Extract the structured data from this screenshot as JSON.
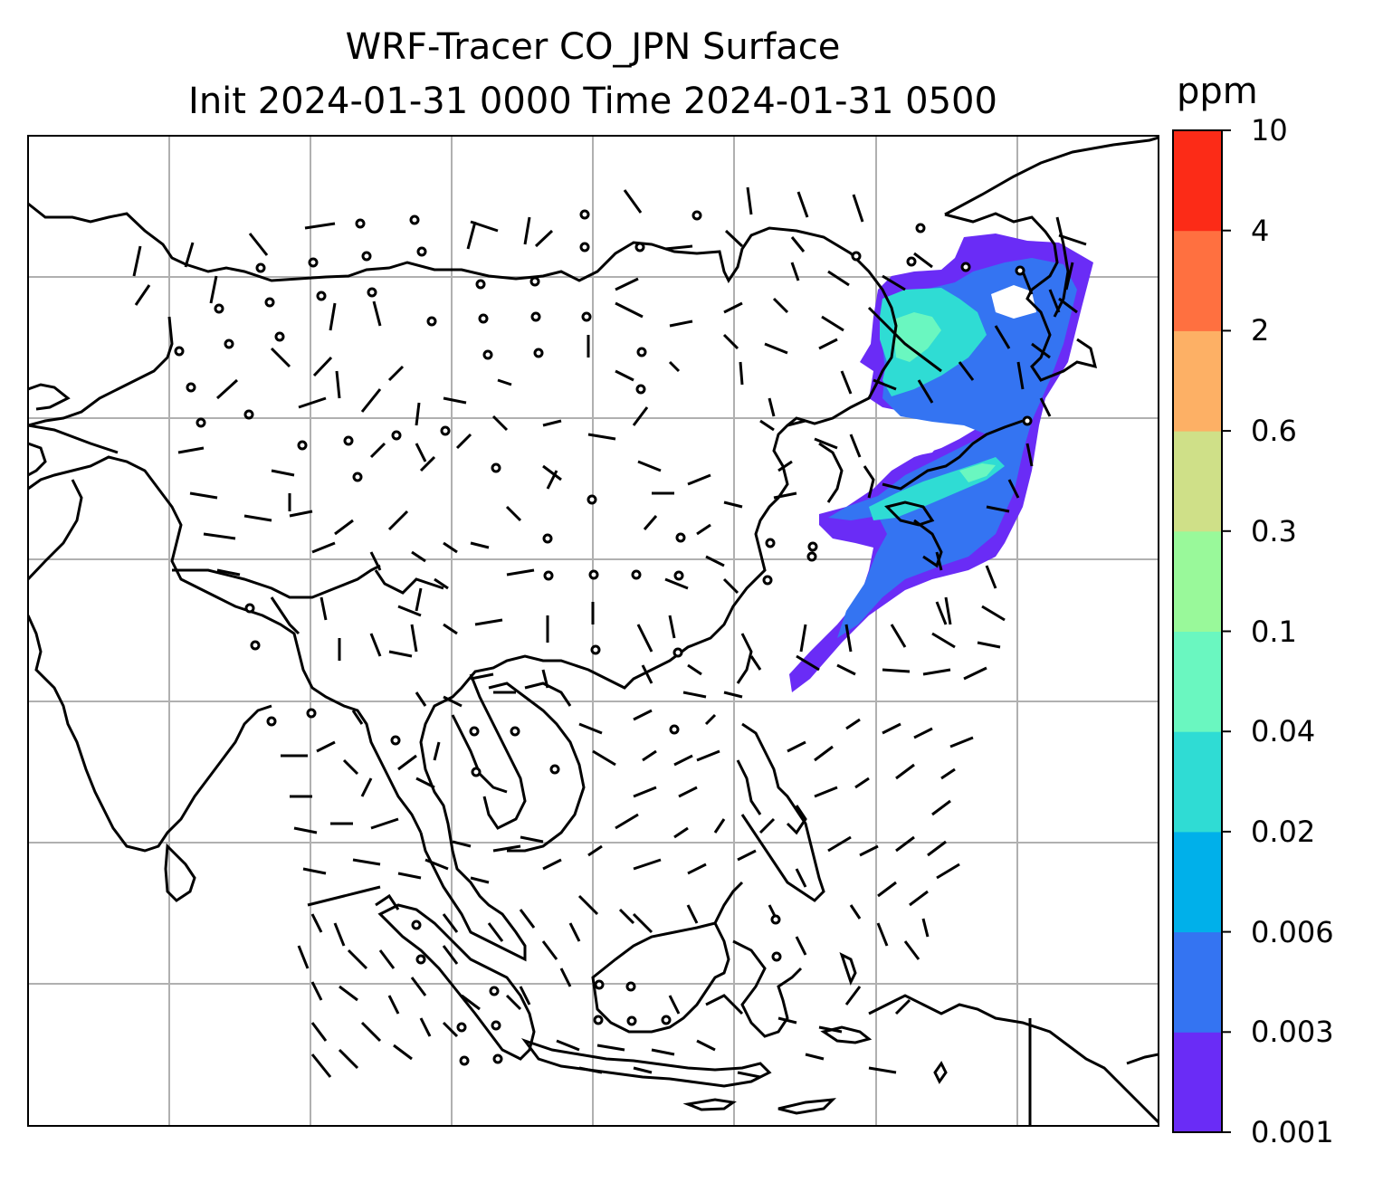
{
  "title": {
    "line1": "WRF-Tracer CO_JPN Surface",
    "line2": "Init 2024-01-31 0000 Time 2024-01-31 0500"
  },
  "colorbar": {
    "unit": "ppm",
    "levels": [
      "0.001",
      "0.003",
      "0.006",
      "0.02",
      "0.04",
      "0.1",
      "0.3",
      "0.6",
      "2",
      "4",
      "10"
    ],
    "colors": [
      "#6a2cf6",
      "#3474f2",
      "#00b0ea",
      "#2fdcd4",
      "#6af7c0",
      "#99f99a",
      "#cfe088",
      "#fdb065",
      "#ff7040",
      "#fc2b17"
    ]
  },
  "map": {
    "projection": "lat-lon",
    "gridlines": true,
    "wind_barbs": true,
    "plume_color_region": "Japan / East China Sea",
    "colors": {
      "plume_low": "#6a2cf6",
      "plume_mid": "#3474f2",
      "plume_high": "#2fdcd4",
      "plume_peak": "#6af7c0",
      "coast": "#000000",
      "grid": "#b0b0b0"
    }
  }
}
